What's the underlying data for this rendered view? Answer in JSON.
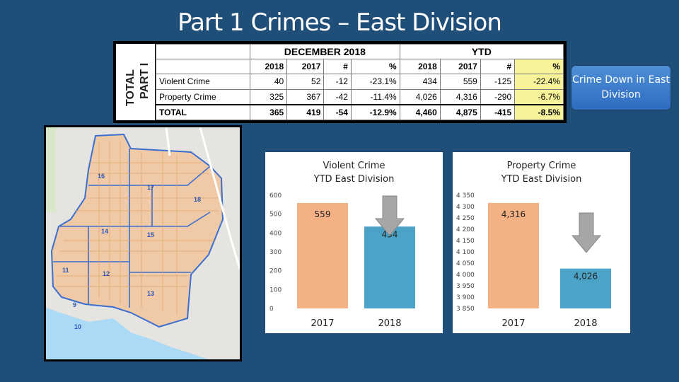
{
  "title": "Part 1 Crimes – East Division",
  "table": {
    "vertical_label_1": "TOTAL",
    "vertical_label_2": "PART I",
    "group_headers": [
      "DECEMBER 2018",
      "YTD"
    ],
    "sub_headers": [
      "2018",
      "2017",
      "#",
      "%",
      "2018",
      "2017",
      "#",
      "%"
    ],
    "rows": [
      {
        "label": "Violent Crime",
        "cells": [
          "40",
          "52",
          "-12",
          "-23.1%",
          "434",
          "559",
          "-125",
          "-22.4%"
        ]
      },
      {
        "label": "Property Crime",
        "cells": [
          "325",
          "367",
          "-42",
          "-11.4%",
          "4,026",
          "4,316",
          "-290",
          "-6.7%"
        ]
      },
      {
        "label": "TOTAL",
        "cells": [
          "365",
          "419",
          "-54",
          "-12.9%",
          "4,460",
          "4,875",
          "-415",
          "-8.5%"
        ]
      }
    ]
  },
  "callout": {
    "text": "Crime Down in East Division"
  },
  "map": {
    "labels": [
      "16",
      "17",
      "18",
      "14",
      "15",
      "11",
      "12",
      "13",
      "9",
      "10"
    ]
  },
  "chart_data": [
    {
      "type": "bar",
      "title_line1": "Violent Crime",
      "title_line2": "YTD East Division",
      "categories": [
        "2017",
        "2018"
      ],
      "values": [
        559,
        434
      ],
      "value_labels": [
        "559",
        "434"
      ],
      "ylim": [
        0,
        600
      ],
      "yticks": [
        0,
        100,
        200,
        300,
        400,
        500,
        600
      ],
      "ytick_labels": [
        "0",
        "100",
        "200",
        "300",
        "400",
        "500",
        "600"
      ],
      "colors": [
        "#f4b183",
        "#4ba3c7"
      ],
      "grid": false,
      "annotation": "down-arrow"
    },
    {
      "type": "bar",
      "title_line1": "Property Crime",
      "title_line2": "YTD East Division",
      "categories": [
        "2017",
        "2018"
      ],
      "values": [
        4316,
        4026
      ],
      "value_labels": [
        "4,316",
        "4,026"
      ],
      "ylim": [
        3850,
        4350
      ],
      "yticks": [
        3850,
        3900,
        3950,
        4000,
        4050,
        4100,
        4150,
        4200,
        4250,
        4300,
        4350
      ],
      "ytick_labels": [
        "3 850",
        "3 900",
        "3 950",
        "4 000",
        "4 050",
        "4 100",
        "4 150",
        "4 200",
        "4 250",
        "4 300",
        "4 350"
      ],
      "colors": [
        "#f4b183",
        "#4ba3c7"
      ],
      "grid": false,
      "annotation": "down-arrow"
    }
  ]
}
